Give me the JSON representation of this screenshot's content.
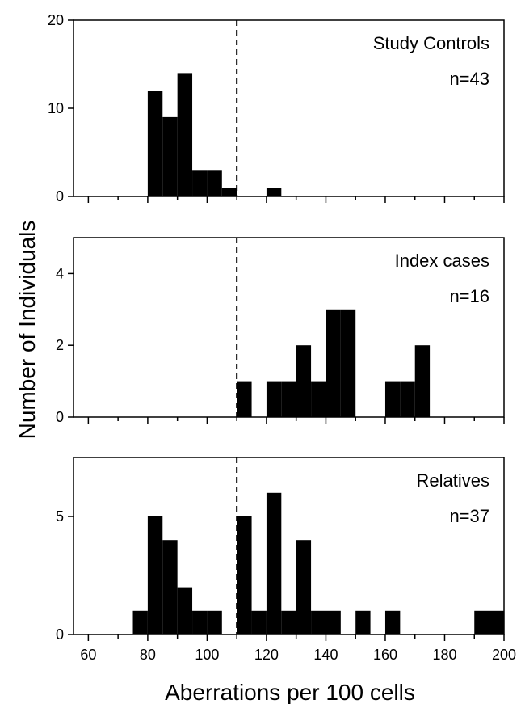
{
  "chart_data": {
    "type": "bar",
    "xlabel": "Aberrations per 100 cells",
    "ylabel": "Number of Individuals",
    "xlim": [
      55,
      200
    ],
    "bin_width": 5,
    "x_ticks": [
      60,
      80,
      100,
      120,
      140,
      160,
      180,
      200
    ],
    "x_tick_labels": [
      "60",
      "80",
      "100",
      "120",
      "140",
      "160",
      "180",
      "200"
    ],
    "threshold_x": 110,
    "grid": false,
    "panels": [
      {
        "label": "Study Controls",
        "n_label": "n=43",
        "ylim": [
          0,
          20
        ],
        "y_ticks": [
          0,
          10,
          20
        ],
        "y_tick_labels": [
          "0",
          "10",
          "20"
        ],
        "bins": [
          {
            "x": 80,
            "value": 12
          },
          {
            "x": 85,
            "value": 9
          },
          {
            "x": 90,
            "value": 14
          },
          {
            "x": 95,
            "value": 3
          },
          {
            "x": 100,
            "value": 3
          },
          {
            "x": 105,
            "value": 1
          },
          {
            "x": 120,
            "value": 1
          }
        ]
      },
      {
        "label": "Index cases",
        "n_label": "n=16",
        "ylim": [
          0,
          5
        ],
        "y_ticks": [
          0,
          2,
          4
        ],
        "y_tick_labels": [
          "0",
          "2",
          "4"
        ],
        "bins": [
          {
            "x": 110,
            "value": 1
          },
          {
            "x": 120,
            "value": 1
          },
          {
            "x": 125,
            "value": 1
          },
          {
            "x": 130,
            "value": 2
          },
          {
            "x": 135,
            "value": 1
          },
          {
            "x": 140,
            "value": 3
          },
          {
            "x": 145,
            "value": 3
          },
          {
            "x": 160,
            "value": 1
          },
          {
            "x": 165,
            "value": 1
          },
          {
            "x": 170,
            "value": 2
          }
        ]
      },
      {
        "label": "Relatives",
        "n_label": "n=37",
        "ylim": [
          0,
          7.5
        ],
        "y_ticks": [
          0,
          5
        ],
        "y_tick_labels": [
          "0",
          "5"
        ],
        "bins": [
          {
            "x": 75,
            "value": 1
          },
          {
            "x": 80,
            "value": 5
          },
          {
            "x": 85,
            "value": 4
          },
          {
            "x": 90,
            "value": 2
          },
          {
            "x": 95,
            "value": 1
          },
          {
            "x": 100,
            "value": 1
          },
          {
            "x": 110,
            "value": 5
          },
          {
            "x": 115,
            "value": 1
          },
          {
            "x": 120,
            "value": 6
          },
          {
            "x": 125,
            "value": 1
          },
          {
            "x": 130,
            "value": 4
          },
          {
            "x": 135,
            "value": 1
          },
          {
            "x": 140,
            "value": 1
          },
          {
            "x": 150,
            "value": 1
          },
          {
            "x": 160,
            "value": 1
          },
          {
            "x": 190,
            "value": 1
          },
          {
            "x": 195,
            "value": 1
          }
        ]
      }
    ]
  }
}
